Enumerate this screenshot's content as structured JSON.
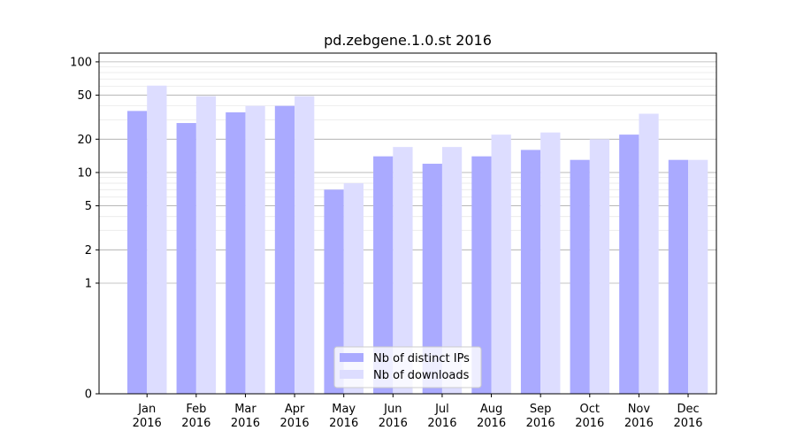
{
  "chart_data": {
    "type": "bar",
    "title": "pd.zebgene.1.0.st 2016",
    "xlabel": "",
    "ylabel": "",
    "yscale": "symlog",
    "yticks": [
      0,
      1,
      2,
      5,
      10,
      20,
      50,
      100
    ],
    "ylim": [
      0,
      120
    ],
    "grid": true,
    "legend_position": "bottom-center",
    "categories": [
      [
        "Jan",
        "2016"
      ],
      [
        "Feb",
        "2016"
      ],
      [
        "Mar",
        "2016"
      ],
      [
        "Apr",
        "2016"
      ],
      [
        "May",
        "2016"
      ],
      [
        "Jun",
        "2016"
      ],
      [
        "Jul",
        "2016"
      ],
      [
        "Aug",
        "2016"
      ],
      [
        "Sep",
        "2016"
      ],
      [
        "Oct",
        "2016"
      ],
      [
        "Nov",
        "2016"
      ],
      [
        "Dec",
        "2016"
      ]
    ],
    "series": [
      {
        "name": "Nb of distinct IPs",
        "color": "#aaaaff",
        "values": [
          36,
          28,
          35,
          40,
          7,
          14,
          12,
          14,
          16,
          13,
          22,
          13
        ]
      },
      {
        "name": "Nb of downloads",
        "color": "#ddddff",
        "values": [
          61,
          49,
          40,
          49,
          8,
          17,
          17,
          22,
          23,
          20,
          34,
          13
        ]
      }
    ]
  }
}
